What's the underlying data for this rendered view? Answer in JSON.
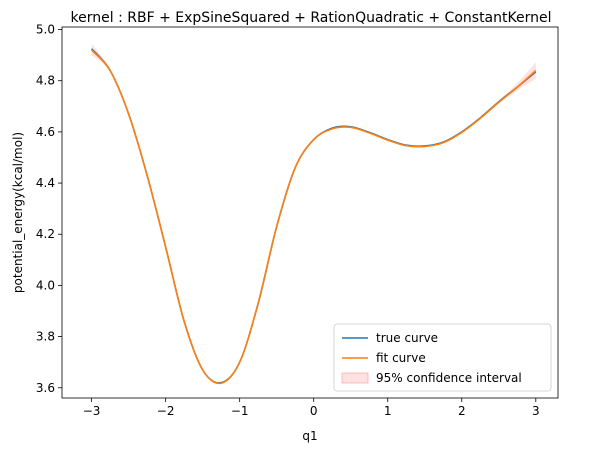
{
  "chart_data": {
    "type": "line",
    "title": "kernel : RBF + ExpSineSquared + RationQuadratic + ConstantKernel",
    "xlabel": "q1",
    "ylabel": "potential_energy(kcal/mol)",
    "xlim": [
      -3.4,
      3.3
    ],
    "ylim": [
      3.56,
      5.01
    ],
    "xticks": [
      -3,
      -2,
      -1,
      0,
      1,
      2,
      3
    ],
    "xtick_labels": [
      "−3",
      "−2",
      "−1",
      "0",
      "1",
      "2",
      "3"
    ],
    "yticks": [
      3.6,
      3.8,
      4.0,
      4.2,
      4.4,
      4.6,
      4.8,
      5.0
    ],
    "ytick_labels": [
      "3.6",
      "3.8",
      "4.0",
      "4.2",
      "4.4",
      "4.6",
      "4.8",
      "5.0"
    ],
    "grid": false,
    "legend_position": "lower-right",
    "x": [
      -3.0,
      -2.75,
      -2.5,
      -2.25,
      -2.0,
      -1.75,
      -1.5,
      -1.25,
      -1.0,
      -0.75,
      -0.5,
      -0.25,
      0.0,
      0.25,
      0.5,
      0.75,
      1.0,
      1.25,
      1.5,
      1.75,
      2.0,
      2.25,
      2.5,
      2.75,
      3.0
    ],
    "series": [
      {
        "name": "true curve",
        "color": "#1f77b4",
        "values": [
          4.925,
          4.84,
          4.67,
          4.43,
          4.15,
          3.86,
          3.67,
          3.62,
          3.7,
          3.93,
          4.23,
          4.46,
          4.57,
          4.615,
          4.62,
          4.598,
          4.57,
          4.548,
          4.545,
          4.56,
          4.6,
          4.655,
          4.718,
          4.775,
          4.835
        ]
      },
      {
        "name": "fit curve",
        "color": "#ff7f0e",
        "values": [
          4.92,
          4.84,
          4.67,
          4.43,
          4.15,
          3.86,
          3.67,
          3.618,
          3.7,
          3.93,
          4.23,
          4.46,
          4.57,
          4.612,
          4.618,
          4.596,
          4.568,
          4.546,
          4.543,
          4.558,
          4.598,
          4.653,
          4.716,
          4.775,
          4.84
        ]
      }
    ],
    "confidence_interval": {
      "name": "95% confidence interval",
      "color": "#ffb3b3",
      "lower": [
        4.9,
        4.834,
        4.666,
        4.427,
        4.147,
        3.857,
        3.667,
        3.615,
        3.697,
        3.927,
        4.227,
        4.457,
        4.567,
        4.609,
        4.615,
        4.593,
        4.565,
        4.543,
        4.54,
        4.555,
        4.595,
        4.65,
        4.71,
        4.762,
        4.808
      ],
      "upper": [
        4.945,
        4.846,
        4.674,
        4.433,
        4.153,
        3.863,
        3.673,
        3.621,
        3.703,
        3.933,
        4.233,
        4.463,
        4.573,
        4.615,
        4.621,
        4.599,
        4.571,
        4.549,
        4.546,
        4.561,
        4.601,
        4.656,
        4.722,
        4.79,
        4.872
      ]
    }
  }
}
